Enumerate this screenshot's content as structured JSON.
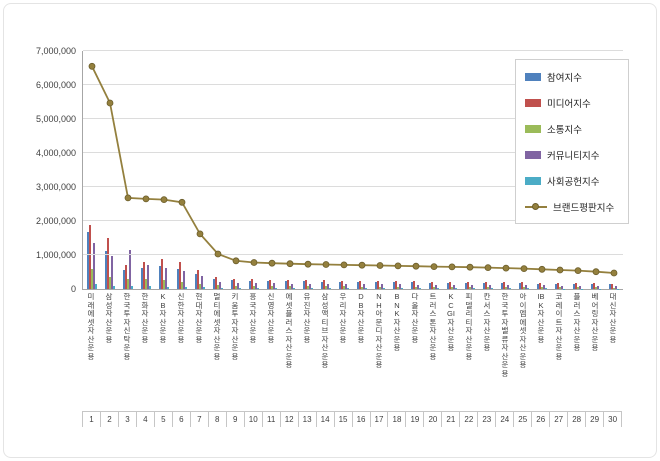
{
  "chart_data": {
    "type": "combo-bar-line",
    "grid": true,
    "legend_position": "top-right",
    "categories": [
      "미래에셋자산운용",
      "삼성자산운용",
      "한국투자신탁운용",
      "한화자산운용",
      "KB자산운용",
      "신한자산운용",
      "현대자산운용",
      "멀티에셋자산운용",
      "키움투자자산운용",
      "흥국자산운용",
      "신영자산운용",
      "에셋플러스자산운용",
      "유진자산운용",
      "삼성액티브자산운용",
      "우리자산운용",
      "DB자산운용",
      "NH아문디자산운용",
      "BNK자산운용",
      "다올자산운용",
      "트러스톤자산운용",
      "KCGI자산운용",
      "피델리티자산운용",
      "칸서스자산운용",
      "한국투자밸류자산운용",
      "아이엠에셋자산운용",
      "IBK자산운용",
      "코레이트자산운용",
      "플러스자산운용",
      "베어링자산운용",
      "대신자산운용"
    ],
    "ranks": [
      "1",
      "2",
      "3",
      "4",
      "5",
      "6",
      "7",
      "8",
      "9",
      "10",
      "11",
      "12",
      "13",
      "14",
      "15",
      "16",
      "17",
      "18",
      "19",
      "20",
      "21",
      "22",
      "23",
      "24",
      "25",
      "26",
      "27",
      "28",
      "29",
      "30"
    ],
    "y_axis": {
      "min": 0,
      "max": 7000000,
      "tick_interval": 1000000,
      "ticks": [
        {
          "label": "7,000,000",
          "value": 7000000
        },
        {
          "label": "6,000,000",
          "value": 6000000
        },
        {
          "label": "5,000,000",
          "value": 5000000
        },
        {
          "label": "4,000,000",
          "value": 4000000
        },
        {
          "label": "3,000,000",
          "value": 3000000
        },
        {
          "label": "2,000,000",
          "value": 2000000
        },
        {
          "label": "1,000,000",
          "value": 1000000
        },
        {
          "label": "0",
          "value": 0
        }
      ]
    },
    "bar_series": [
      {
        "name": "참여지수",
        "key": "participation-index",
        "color": "#4F81BD",
        "values": [
          1670000,
          1120000,
          550000,
          620000,
          680000,
          580000,
          450000,
          300000,
          260000,
          240000,
          235000,
          230000,
          225000,
          220000,
          215000,
          210000,
          205000,
          200000,
          195000,
          190000,
          185000,
          180000,
          175000,
          170000,
          165000,
          160000,
          155000,
          150000,
          145000,
          135000
        ]
      },
      {
        "name": "미디어지수",
        "key": "media-index",
        "color": "#C0504D",
        "values": [
          1880000,
          1500000,
          720000,
          780000,
          880000,
          780000,
          560000,
          360000,
          300000,
          280000,
          272000,
          265000,
          258000,
          252000,
          246000,
          240000,
          235000,
          230000,
          225000,
          220000,
          215000,
          210000,
          205000,
          200000,
          195000,
          190000,
          185000,
          180000,
          172000,
          160000
        ]
      },
      {
        "name": "소통지수",
        "key": "communication-index",
        "color": "#9BBB59",
        "values": [
          590000,
          350000,
          280000,
          300000,
          260000,
          220000,
          160000,
          110000,
          90000,
          85000,
          82000,
          80000,
          78000,
          76000,
          74000,
          72000,
          70000,
          68000,
          66000,
          64000,
          62000,
          60000,
          58000,
          56000,
          54000,
          52000,
          50000,
          48000,
          46000,
          44000
        ]
      },
      {
        "name": "커뮤니티지수",
        "key": "community-index",
        "color": "#8064A2",
        "values": [
          1350000,
          970000,
          1150000,
          720000,
          620000,
          520000,
          380000,
          220000,
          180000,
          170000,
          165000,
          160000,
          156000,
          152000,
          148000,
          144000,
          140000,
          136000,
          132000,
          128000,
          124000,
          120000,
          116000,
          112000,
          108000,
          104000,
          100000,
          96000,
          92000,
          88000
        ]
      },
      {
        "name": "사회공헌지수",
        "key": "social-contribution-index",
        "color": "#4BACC6",
        "values": [
          150000,
          100000,
          80000,
          80000,
          70000,
          60000,
          50000,
          40000,
          35000,
          33000,
          31000,
          30000,
          29000,
          28000,
          27000,
          26000,
          25000,
          24000,
          23000,
          22000,
          21000,
          20000,
          19000,
          18000,
          17000,
          16000,
          15000,
          14000,
          13000,
          12000
        ]
      }
    ],
    "line_series": {
      "name": "브랜드평판지수",
      "key": "brand-reputation-index",
      "color": "#94803E",
      "marker_color": "#94803E",
      "marker_stroke": "#6B5D2B",
      "values": [
        6550000,
        5470000,
        2680000,
        2650000,
        2630000,
        2550000,
        1620000,
        1030000,
        830000,
        780000,
        760000,
        745000,
        730000,
        720000,
        710000,
        700000,
        690000,
        680000,
        670000,
        660000,
        650000,
        640000,
        630000,
        615000,
        600000,
        580000,
        560000,
        540000,
        510000,
        470000
      ]
    }
  }
}
